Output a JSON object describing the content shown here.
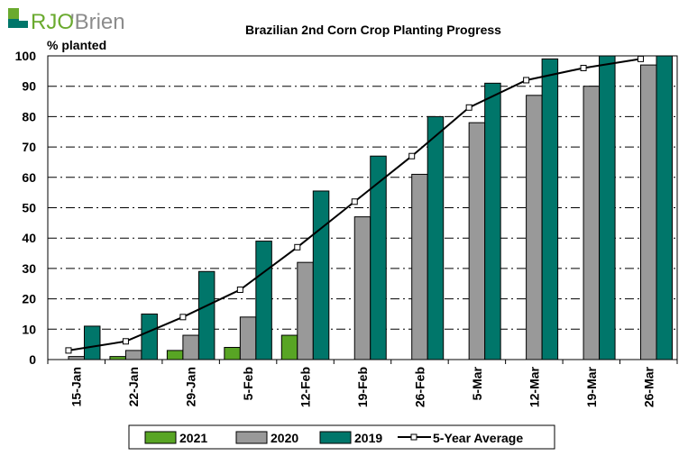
{
  "logo": {
    "text_rjo": "RJO",
    "text_brien": "'Brien"
  },
  "colors": {
    "s2021": "#58a524",
    "s2020": "#999999",
    "s2019": "#00766a",
    "avg": "#000000",
    "logo_green": "#6aaa2e",
    "logo_gray": "#8c8c8c"
  },
  "chart_data": {
    "type": "bar",
    "title": "Brazilian 2nd Corn Crop Planting Progress",
    "ylabel": "% planted",
    "xlabel": "",
    "ylim": [
      0,
      100
    ],
    "yticks": [
      "0",
      "10",
      "20",
      "30",
      "40",
      "50",
      "60",
      "70",
      "80",
      "90",
      "100"
    ],
    "grid": true,
    "legend_position": "bottom",
    "categories": [
      "15-Jan",
      "22-Jan",
      "29-Jan",
      "5-Feb",
      "12-Feb",
      "19-Feb",
      "26-Feb",
      "5-Mar",
      "12-Mar",
      "19-Mar",
      "26-Mar"
    ],
    "series": [
      {
        "name": "2021",
        "type": "bar",
        "values": [
          0,
          1,
          3,
          4,
          8,
          null,
          null,
          null,
          null,
          null,
          null
        ]
      },
      {
        "name": "2020",
        "type": "bar",
        "values": [
          1,
          3,
          8,
          14,
          32,
          47,
          61,
          78,
          87,
          90,
          97
        ]
      },
      {
        "name": "2019",
        "type": "bar",
        "values": [
          11,
          15,
          29,
          39,
          55.5,
          67,
          80,
          91,
          99,
          100,
          100
        ]
      },
      {
        "name": "5-Year Average",
        "type": "line",
        "values": [
          3,
          6,
          14,
          23,
          37,
          52,
          67,
          83,
          92,
          96,
          99
        ]
      }
    ]
  }
}
